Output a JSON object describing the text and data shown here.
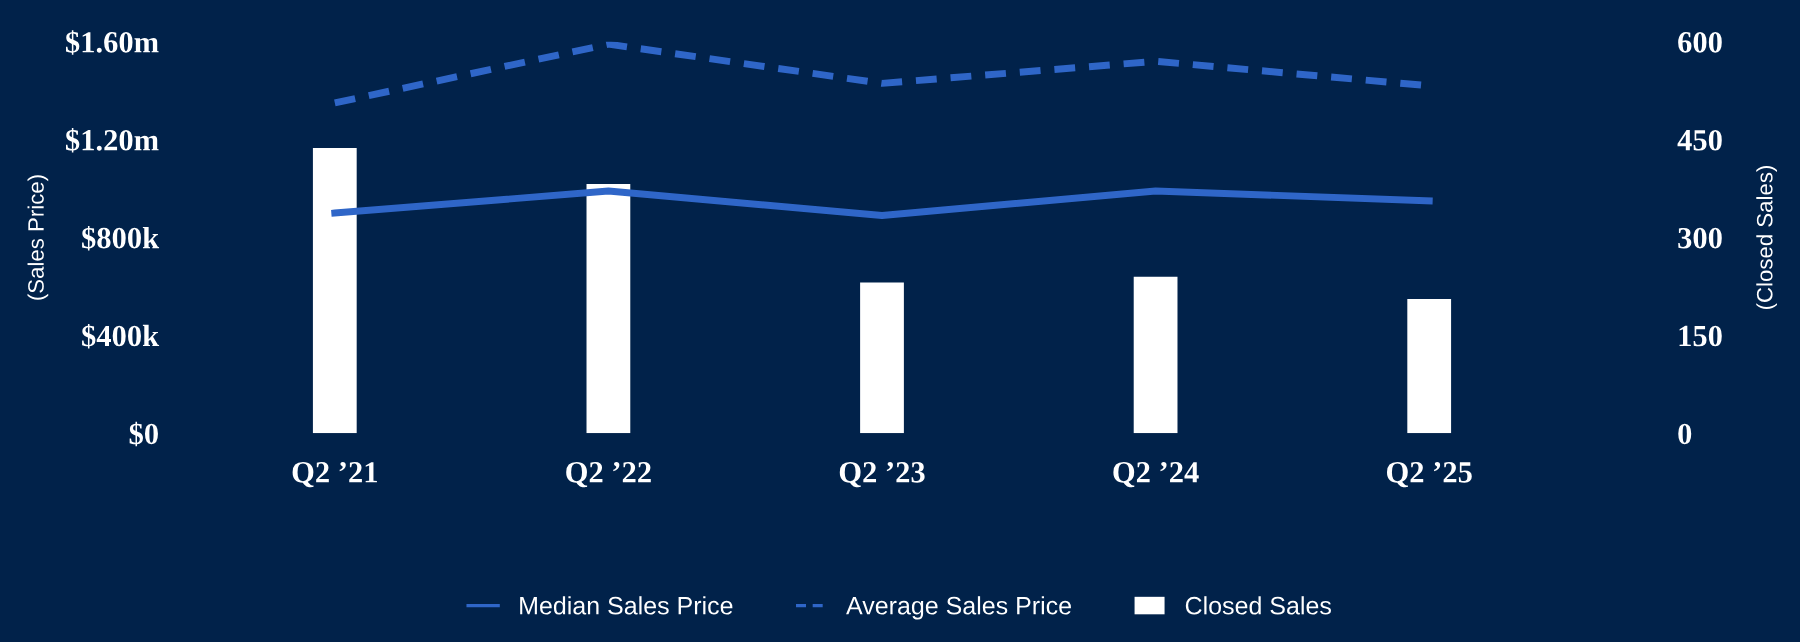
{
  "chart_data": {
    "type": "bar",
    "categories": [
      "Q2 ’21",
      "Q2 ’22",
      "Q2 ’23",
      "Q2 ’24",
      "Q2 ’25"
    ],
    "ylabel": "(Sales Price)",
    "y2label": "(Closed Sales)",
    "ylim": [
      0,
      1600000
    ],
    "yticks": [
      {
        "value": 0,
        "label": "$0"
      },
      {
        "value": 400000,
        "label": "$400k"
      },
      {
        "value": 800000,
        "label": "$800k"
      },
      {
        "value": 1200000,
        "label": "$1.20m"
      },
      {
        "value": 1600000,
        "label": "$1.60m"
      }
    ],
    "y2lim": [
      0,
      600
    ],
    "y2ticks": [
      0,
      150,
      300,
      450,
      600
    ],
    "series": [
      {
        "name": "Median Sales Price",
        "type": "line",
        "line_style": "solid",
        "color": "#2f66c8",
        "values": [
          900000,
          990000,
          890000,
          990000,
          950000
        ]
      },
      {
        "name": "Average Sales Price",
        "type": "line",
        "line_style": "dashed",
        "color": "#2f66c8",
        "values": [
          1350000,
          1590000,
          1430000,
          1520000,
          1420000
        ]
      },
      {
        "name": "Closed Sales",
        "axis": "y2",
        "color": "#ffffff",
        "values": [
          437,
          382,
          231,
          240,
          206
        ]
      }
    ],
    "grid": false,
    "legend": "bottom",
    "marker": "none"
  }
}
